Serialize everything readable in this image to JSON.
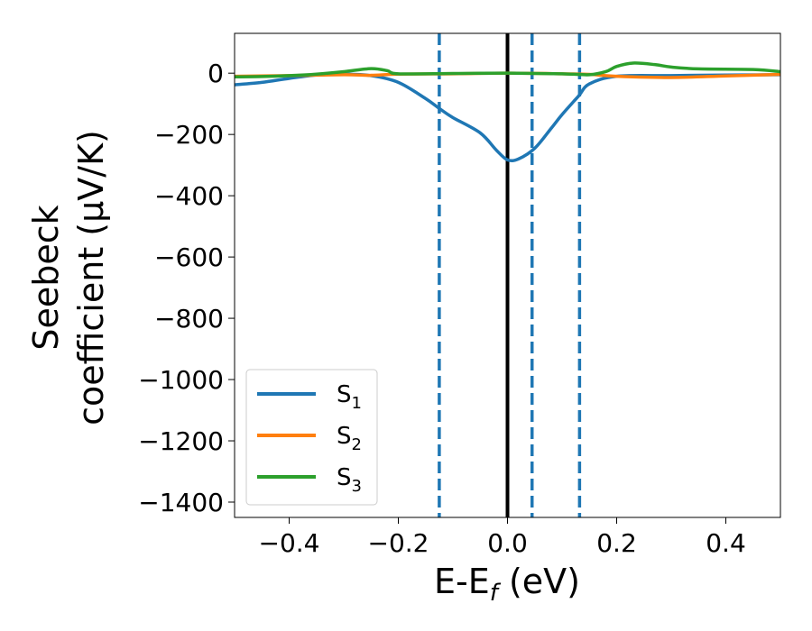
{
  "chart_data": {
    "type": "line",
    "xlabel": "E-E_f (eV)",
    "ylabel_lines": [
      "Seebeck",
      "coefficient  (μV/K)"
    ],
    "xlim": [
      -0.5,
      0.5
    ],
    "ylim": [
      -1450,
      130
    ],
    "xticks": [
      -0.4,
      -0.2,
      0.0,
      0.2,
      0.4
    ],
    "xtick_labels": [
      "−0.4",
      "−0.2",
      "0.0",
      "0.2",
      "0.4"
    ],
    "yticks": [
      0,
      -200,
      -400,
      -600,
      -800,
      -1000,
      -1200,
      -1400
    ],
    "ytick_labels": [
      "0",
      "−200",
      "−400",
      "−600",
      "−800",
      "−1000",
      "−1200",
      "−1400"
    ],
    "grid": false,
    "legend_position": "lower-left",
    "series": [
      {
        "name": "S1",
        "legend_label": "S",
        "legend_sub": "1",
        "color": "#1f77b4",
        "points": [
          [
            -0.5,
            -38
          ],
          [
            -0.45,
            -30
          ],
          [
            -0.4,
            -17
          ],
          [
            -0.35,
            -6
          ],
          [
            -0.3,
            -3
          ],
          [
            -0.25,
            -8
          ],
          [
            -0.2,
            -30
          ],
          [
            -0.15,
            -83
          ],
          [
            -0.125,
            -115
          ],
          [
            -0.1,
            -145
          ],
          [
            -0.05,
            -195
          ],
          [
            -0.02,
            -252
          ],
          [
            0.0,
            -283
          ],
          [
            0.02,
            -280
          ],
          [
            0.05,
            -245
          ],
          [
            0.08,
            -180
          ],
          [
            0.1,
            -135
          ],
          [
            0.13,
            -75
          ],
          [
            0.15,
            -35
          ],
          [
            0.2,
            -10
          ],
          [
            0.3,
            -8
          ],
          [
            0.4,
            -6
          ],
          [
            0.5,
            -5
          ]
        ]
      },
      {
        "name": "S2",
        "legend_label": "S",
        "legend_sub": "2",
        "color": "#ff7f0e",
        "points": [
          [
            -0.5,
            -10
          ],
          [
            -0.4,
            -8
          ],
          [
            -0.3,
            -5
          ],
          [
            -0.25,
            -7
          ],
          [
            -0.2,
            -3
          ],
          [
            -0.1,
            -2
          ],
          [
            0.0,
            0
          ],
          [
            0.1,
            -2
          ],
          [
            0.15,
            -4
          ],
          [
            0.2,
            -10
          ],
          [
            0.3,
            -14
          ],
          [
            0.4,
            -9
          ],
          [
            0.5,
            -4
          ]
        ]
      },
      {
        "name": "S3",
        "legend_label": "S",
        "legend_sub": "3",
        "color": "#2ca02c",
        "points": [
          [
            -0.5,
            -12
          ],
          [
            -0.45,
            -11
          ],
          [
            -0.4,
            -8
          ],
          [
            -0.35,
            -3
          ],
          [
            -0.3,
            5
          ],
          [
            -0.25,
            15
          ],
          [
            -0.22,
            8
          ],
          [
            -0.2,
            -2
          ],
          [
            -0.1,
            -1
          ],
          [
            0.0,
            0
          ],
          [
            0.1,
            -2
          ],
          [
            0.15,
            -5
          ],
          [
            0.18,
            5
          ],
          [
            0.2,
            22
          ],
          [
            0.23,
            33
          ],
          [
            0.27,
            28
          ],
          [
            0.3,
            20
          ],
          [
            0.35,
            14
          ],
          [
            0.45,
            12
          ],
          [
            0.5,
            5
          ]
        ]
      }
    ],
    "vertical_lines": [
      {
        "x": 0.0,
        "color": "#000000",
        "style": "solid"
      },
      {
        "x": -0.125,
        "color": "#1f77b4",
        "style": "dashed"
      },
      {
        "x": 0.045,
        "color": "#1f77b4",
        "style": "dashed"
      },
      {
        "x": 0.132,
        "color": "#1f77b4",
        "style": "dashed"
      }
    ]
  }
}
